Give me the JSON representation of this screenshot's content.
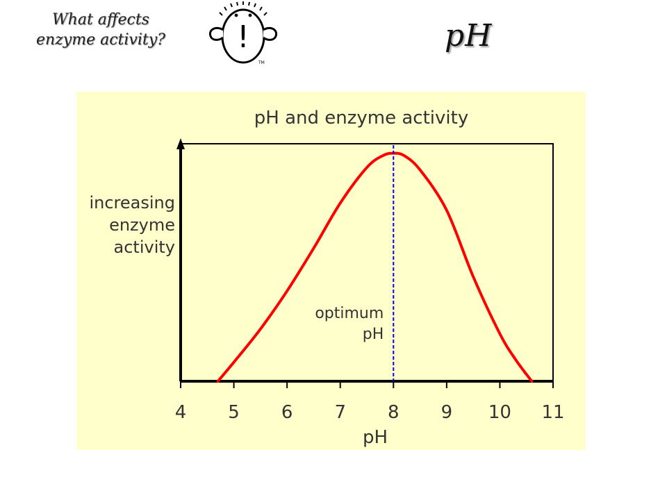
{
  "header": {
    "line1": "What affects",
    "line2": "enzyme activity?"
  },
  "logo": {
    "mark": "!",
    "trademark": "TM"
  },
  "slide_title": "pH",
  "chart_data": {
    "type": "line",
    "title": "pH and enzyme activity",
    "xlabel": "pH",
    "ylabel_lines": [
      "increasing",
      "enzyme",
      "activity"
    ],
    "xlim": [
      4,
      11
    ],
    "ylim": [
      0,
      1
    ],
    "x_ticks": [
      4,
      5,
      6,
      7,
      8,
      9,
      10,
      11
    ],
    "grid": false,
    "series": [
      {
        "color": "#ff0000",
        "x": [
          4.7,
          5.0,
          5.5,
          6.0,
          6.5,
          7.0,
          7.5,
          7.8,
          8.0,
          8.2,
          8.5,
          9.0,
          9.5,
          10.0,
          10.3,
          10.6
        ],
        "y": [
          0.0,
          0.08,
          0.22,
          0.38,
          0.56,
          0.75,
          0.9,
          0.95,
          0.96,
          0.95,
          0.89,
          0.72,
          0.44,
          0.2,
          0.09,
          0.0
        ]
      }
    ],
    "optimum": {
      "x": 8,
      "label_lines": [
        "optimum",
        "pH"
      ],
      "color": "#0000ff"
    },
    "colors": {
      "background": "#ffffcc",
      "axis": "#000000",
      "text": "#333333"
    }
  }
}
